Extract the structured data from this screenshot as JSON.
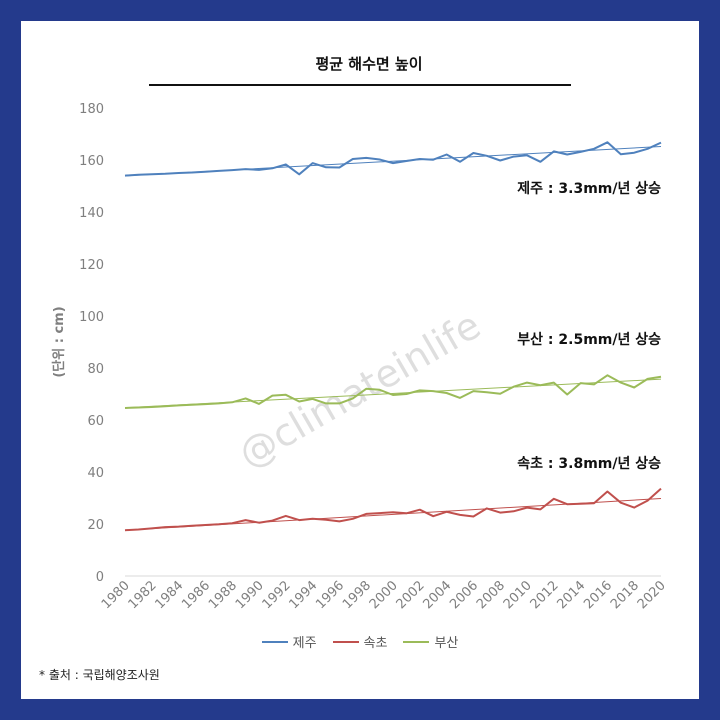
{
  "chart_data": {
    "type": "line",
    "title": "평균 해수면 높이",
    "ylabel": "(단위 : cm)",
    "xlabel": "",
    "ylim": [
      0,
      180
    ],
    "yticks": [
      0,
      20,
      40,
      60,
      80,
      100,
      120,
      140,
      160,
      180
    ],
    "xlim": [
      1980,
      2020
    ],
    "xticks": [
      1980,
      1982,
      1984,
      1986,
      1988,
      1990,
      1992,
      1994,
      1996,
      1998,
      2000,
      2002,
      2004,
      2006,
      2008,
      2010,
      2012,
      2014,
      2016,
      2018,
      2020
    ],
    "x": [
      1980,
      1981,
      1982,
      1983,
      1984,
      1985,
      1986,
      1987,
      1988,
      1989,
      1990,
      1991,
      1992,
      1993,
      1994,
      1995,
      1996,
      1997,
      1998,
      1999,
      2000,
      2001,
      2002,
      2003,
      2004,
      2005,
      2006,
      2007,
      2008,
      2009,
      2010,
      2011,
      2012,
      2013,
      2014,
      2015,
      2016,
      2017,
      2018,
      2019,
      2020
    ],
    "grid": false,
    "legend_position": "bottom",
    "series": [
      {
        "name": "제주",
        "color": "#4f81bd",
        "values": [
          154,
          154.3,
          154.5,
          154.7,
          155,
          155.2,
          155.5,
          155.8,
          156.1,
          156.5,
          156.2,
          156.8,
          158.3,
          154.5,
          158.8,
          157.2,
          157.1,
          160.4,
          160.8,
          160.2,
          158.8,
          159.6,
          160.4,
          160.1,
          162.1,
          159.3,
          162.7,
          161.6,
          159.8,
          161.3,
          161.8,
          159.3,
          163.3,
          162.1,
          163.1,
          164.3,
          166.8,
          162.2,
          162.8,
          164.3,
          166.7
        ],
        "trend": [
          153.9,
          165.2
        ]
      },
      {
        "name": "속초",
        "color": "#c0504d",
        "values": [
          17.6,
          17.9,
          18.3,
          18.8,
          19,
          19.3,
          19.6,
          19.9,
          20.3,
          21.5,
          20.5,
          21.3,
          23.1,
          21.5,
          22,
          21.6,
          21,
          22,
          23.9,
          24.2,
          24.5,
          24.1,
          25.5,
          23,
          24.7,
          23.5,
          22.9,
          26,
          24.4,
          24.9,
          26.3,
          25.6,
          29.7,
          27.6,
          27.8,
          28,
          32.5,
          28.2,
          26.3,
          29,
          33.6
        ],
        "trend": [
          17.6,
          29.8
        ]
      },
      {
        "name": "부산",
        "color": "#9bbb59",
        "values": [
          64.6,
          64.8,
          65,
          65.3,
          65.6,
          65.9,
          66.1,
          66.4,
          66.8,
          68.3,
          66.2,
          69.4,
          69.7,
          67.1,
          68.1,
          66.4,
          66.4,
          68.3,
          72,
          71.6,
          69.6,
          70,
          71.4,
          71.1,
          70.4,
          68.5,
          71.1,
          70.7,
          70.1,
          72.8,
          74.4,
          73.4,
          74.4,
          69.8,
          74.2,
          73.7,
          77.2,
          74.4,
          72.5,
          75.8,
          76.6
        ],
        "trend": [
          64.7,
          75.7
        ]
      }
    ],
    "annotations": [
      {
        "text": "제주 : 3.3mm/년 상승",
        "series": "제주"
      },
      {
        "text": "부산 : 2.5mm/년 상승",
        "series": "부산"
      },
      {
        "text": "속초 : 3.8mm/년 상승",
        "series": "속초"
      }
    ]
  },
  "watermark": "@climateinlife",
  "source_note": "* 출처 : 국립해양조사원"
}
